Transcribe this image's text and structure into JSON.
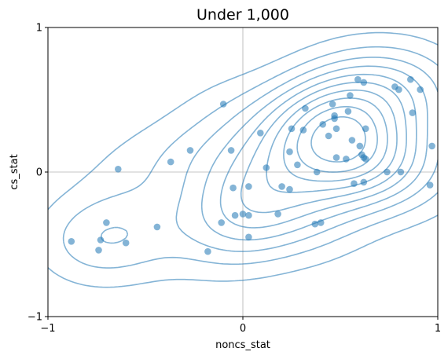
{
  "chart_data": {
    "type": "scatter",
    "title": "Under 1,000",
    "xlabel": "noncs_stat",
    "ylabel": "cs_stat",
    "xlim": [
      -1,
      1
    ],
    "ylim": [
      -1,
      1
    ],
    "xticks": [
      {
        "value": -1,
        "label": "−1"
      },
      {
        "value": 0,
        "label": "0"
      },
      {
        "value": 1,
        "label": "1"
      }
    ],
    "yticks": [
      {
        "value": -1,
        "label": "−1"
      },
      {
        "value": 0,
        "label": "0"
      },
      {
        "value": 1,
        "label": "1"
      }
    ],
    "reference_lines": {
      "x": 0,
      "y": 0
    },
    "grid": false,
    "overlay": "kde-contours",
    "color": "#1f77b4",
    "points": [
      [
        -0.88,
        -0.48
      ],
      [
        -0.7,
        -0.35
      ],
      [
        -0.74,
        -0.54
      ],
      [
        -0.73,
        -0.47
      ],
      [
        -0.6,
        -0.49
      ],
      [
        -0.44,
        -0.38
      ],
      [
        -0.64,
        0.02
      ],
      [
        -0.37,
        0.07
      ],
      [
        -0.27,
        0.15
      ],
      [
        -0.18,
        -0.55
      ],
      [
        -0.11,
        -0.35
      ],
      [
        -0.1,
        0.47
      ],
      [
        -0.06,
        0.15
      ],
      [
        -0.05,
        -0.11
      ],
      [
        -0.04,
        -0.3
      ],
      [
        0.0,
        -0.29
      ],
      [
        0.03,
        -0.3
      ],
      [
        0.03,
        -0.1
      ],
      [
        0.03,
        -0.45
      ],
      [
        0.09,
        0.27
      ],
      [
        0.12,
        0.03
      ],
      [
        0.18,
        -0.29
      ],
      [
        0.2,
        -0.1
      ],
      [
        0.24,
        -0.12
      ],
      [
        0.24,
        0.14
      ],
      [
        0.25,
        0.3
      ],
      [
        0.28,
        0.05
      ],
      [
        0.31,
        0.29
      ],
      [
        0.32,
        0.44
      ],
      [
        0.37,
        -0.36
      ],
      [
        0.38,
        0.0
      ],
      [
        0.4,
        -0.35
      ],
      [
        0.41,
        0.33
      ],
      [
        0.44,
        0.25
      ],
      [
        0.46,
        0.47
      ],
      [
        0.47,
        0.39
      ],
      [
        0.47,
        0.37
      ],
      [
        0.48,
        0.3
      ],
      [
        0.48,
        0.1
      ],
      [
        0.53,
        0.09
      ],
      [
        0.54,
        0.42
      ],
      [
        0.55,
        0.53
      ],
      [
        0.56,
        0.22
      ],
      [
        0.57,
        -0.08
      ],
      [
        0.59,
        0.64
      ],
      [
        0.6,
        0.18
      ],
      [
        0.61,
        0.12
      ],
      [
        0.62,
        0.62
      ],
      [
        0.62,
        0.1
      ],
      [
        0.62,
        -0.07
      ],
      [
        0.63,
        0.3
      ],
      [
        0.63,
        0.09
      ],
      [
        0.74,
        0.0
      ],
      [
        0.78,
        0.59
      ],
      [
        0.8,
        0.57
      ],
      [
        0.81,
        0.0
      ],
      [
        0.86,
        0.64
      ],
      [
        0.87,
        0.41
      ],
      [
        0.91,
        0.57
      ],
      [
        0.96,
        -0.09
      ],
      [
        0.97,
        0.18
      ]
    ]
  }
}
